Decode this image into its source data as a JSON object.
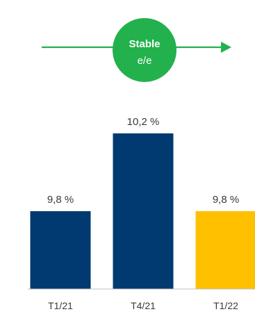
{
  "trend": {
    "title": "Stable",
    "subtitle": "e/e",
    "color": "#22b14c"
  },
  "chart_data": {
    "type": "bar",
    "categories": [
      "T1/21",
      "T4/21",
      "T1/22"
    ],
    "values": [
      9.8,
      10.2,
      9.8
    ],
    "labels": [
      "9,8 %",
      "10,2 %",
      "9,8 %"
    ],
    "colors": [
      "#003a70",
      "#003a70",
      "#ffc000"
    ],
    "axis_color": "#bfbfbf",
    "grid": false,
    "legend": "none"
  }
}
